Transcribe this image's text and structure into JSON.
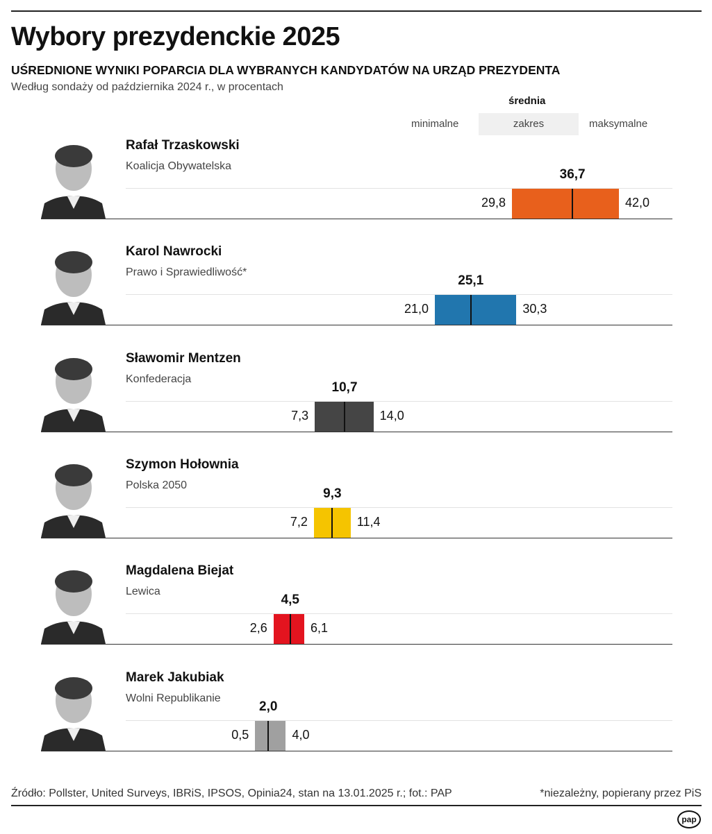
{
  "header": {
    "title": "Wybory prezydenckie 2025",
    "subtitle": "UŚREDNIONE WYNIKI POPARCIA DLA WYBRANYCH KANDYDATÓW NA URZĄD PREZYDENTA",
    "description": "Według sondaży od października 2024 r., w procentach"
  },
  "legend": {
    "mean": "średnia",
    "range": "zakres",
    "min": "minimalne",
    "max": "maksymalne"
  },
  "chart_data": {
    "type": "range-bar",
    "unit": "%",
    "series": [
      {
        "name": "Rafał Trzaskowski",
        "party": "Koalicja Obywatelska",
        "min": 29.8,
        "mean": 36.7,
        "max": 42.0,
        "min_label": "29,8",
        "mean_label": "36,7",
        "max_label": "42,0",
        "color": "#e8601c"
      },
      {
        "name": "Karol Nawrocki",
        "party": "Prawo i Sprawiedliwość*",
        "min": 21.0,
        "mean": 25.1,
        "max": 30.3,
        "min_label": "21,0",
        "mean_label": "25,1",
        "max_label": "30,3",
        "color": "#2176ae"
      },
      {
        "name": "Sławomir Mentzen",
        "party": "Konfederacja",
        "min": 7.3,
        "mean": 10.7,
        "max": 14.0,
        "min_label": "7,3",
        "mean_label": "10,7",
        "max_label": "14,0",
        "color": "#454545"
      },
      {
        "name": "Szymon Hołownia",
        "party": "Polska 2050",
        "min": 7.2,
        "mean": 9.3,
        "max": 11.4,
        "min_label": "7,2",
        "mean_label": "9,3",
        "max_label": "11,4",
        "color": "#f5c400"
      },
      {
        "name": "Magdalena Biejat",
        "party": "Lewica",
        "min": 2.6,
        "mean": 4.5,
        "max": 6.1,
        "min_label": "2,6",
        "mean_label": "4,5",
        "max_label": "6,1",
        "color": "#e3141f"
      },
      {
        "name": "Marek Jakubiak",
        "party": "Wolni Republikanie",
        "min": 0.5,
        "mean": 2.0,
        "max": 4.0,
        "min_label": "0,5",
        "mean_label": "2,0",
        "max_label": "4,0",
        "color": "#a0a0a0"
      }
    ]
  },
  "footer": {
    "source": "Źródło: Pollster, United Surveys, IBRiS, IPSOS, Opinia24,  stan na 13.01.2025 r.; fot.: PAP",
    "note": "*niezależny, popierany przez PiS",
    "logo": "pap"
  }
}
